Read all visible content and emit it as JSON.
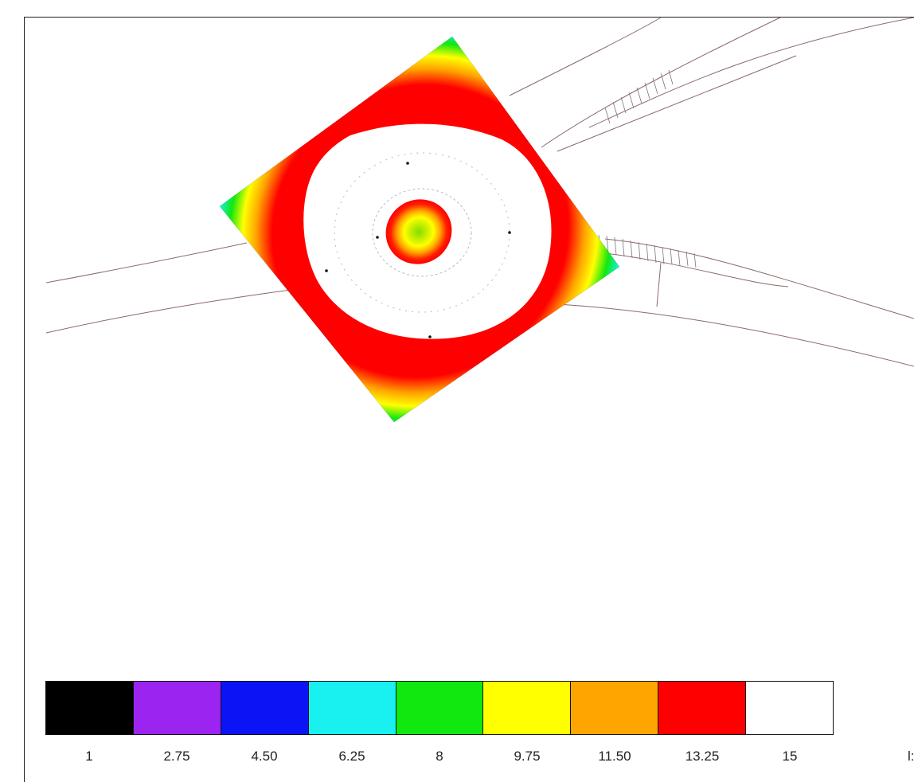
{
  "legend": {
    "colors": [
      "#000000",
      "#9b24f0",
      "#0a14f5",
      "#19f0f0",
      "#10e810",
      "#ffff00",
      "#ffa500",
      "#ff0000",
      "#ffffff"
    ],
    "ticks": [
      "1",
      "2.75",
      "4.50",
      "6.25",
      "8",
      "9.75",
      "11.50",
      "13.25",
      "15"
    ],
    "unit_fragment": "l:"
  }
}
